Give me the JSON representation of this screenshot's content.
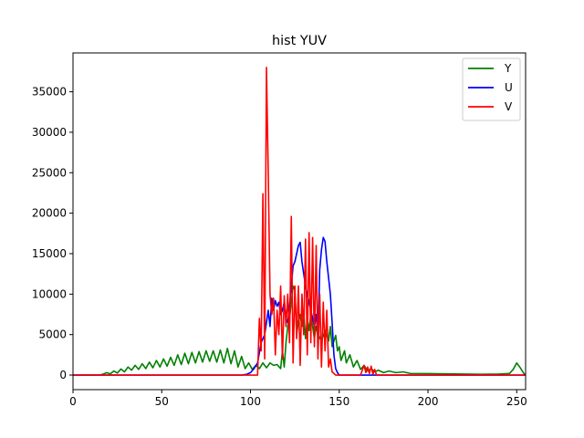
{
  "chart_data": {
    "type": "line",
    "title": "hist YUV",
    "xlabel": "",
    "ylabel": "",
    "xlim": [
      0,
      255
    ],
    "ylim": [
      -1800,
      39800
    ],
    "xticks": [
      0,
      50,
      100,
      150,
      200,
      250
    ],
    "yticks": [
      0,
      5000,
      10000,
      15000,
      20000,
      25000,
      30000,
      35000
    ],
    "legend_position": "top-right",
    "grid": false,
    "series": [
      {
        "name": "Y",
        "color": "#008000",
        "points": [
          [
            0,
            0
          ],
          [
            15,
            0
          ],
          [
            17,
            120
          ],
          [
            19,
            300
          ],
          [
            21,
            150
          ],
          [
            23,
            500
          ],
          [
            25,
            250
          ],
          [
            27,
            750
          ],
          [
            29,
            400
          ],
          [
            31,
            1000
          ],
          [
            33,
            600
          ],
          [
            35,
            1200
          ],
          [
            37,
            700
          ],
          [
            39,
            1400
          ],
          [
            41,
            800
          ],
          [
            43,
            1600
          ],
          [
            45,
            900
          ],
          [
            47,
            1800
          ],
          [
            49,
            1000
          ],
          [
            51,
            2000
          ],
          [
            53,
            1100
          ],
          [
            55,
            2200
          ],
          [
            57,
            1200
          ],
          [
            59,
            2500
          ],
          [
            61,
            1300
          ],
          [
            63,
            2700
          ],
          [
            65,
            1400
          ],
          [
            67,
            2800
          ],
          [
            69,
            1500
          ],
          [
            71,
            2900
          ],
          [
            73,
            1600
          ],
          [
            75,
            3000
          ],
          [
            77,
            1700
          ],
          [
            79,
            3000
          ],
          [
            81,
            1600
          ],
          [
            83,
            3100
          ],
          [
            85,
            1500
          ],
          [
            87,
            3300
          ],
          [
            89,
            1400
          ],
          [
            91,
            3000
          ],
          [
            93,
            1000
          ],
          [
            95,
            2300
          ],
          [
            97,
            800
          ],
          [
            99,
            1500
          ],
          [
            101,
            700
          ],
          [
            103,
            1200
          ],
          [
            105,
            800
          ],
          [
            107,
            1500
          ],
          [
            109,
            900
          ],
          [
            111,
            1500
          ],
          [
            113,
            1200
          ],
          [
            115,
            1300
          ],
          [
            117,
            800
          ],
          [
            118,
            3000
          ],
          [
            119,
            1000
          ],
          [
            120,
            4000
          ],
          [
            121,
            6000
          ],
          [
            122,
            7000
          ],
          [
            123,
            9000
          ],
          [
            124,
            11000
          ],
          [
            125,
            10500
          ],
          [
            126,
            5000
          ],
          [
            127,
            6500
          ],
          [
            128,
            7500
          ],
          [
            129,
            6000
          ],
          [
            130,
            7800
          ],
          [
            131,
            4500
          ],
          [
            132,
            7000
          ],
          [
            133,
            5500
          ],
          [
            134,
            7500
          ],
          [
            135,
            6000
          ],
          [
            136,
            4500
          ],
          [
            137,
            6000
          ],
          [
            138,
            5000
          ],
          [
            140,
            4200
          ],
          [
            142,
            5500
          ],
          [
            144,
            4200
          ],
          [
            145,
            6000
          ],
          [
            146,
            3500
          ],
          [
            148,
            4900
          ],
          [
            149,
            3000
          ],
          [
            150,
            3500
          ],
          [
            151,
            1800
          ],
          [
            153,
            3000
          ],
          [
            154,
            1500
          ],
          [
            156,
            2500
          ],
          [
            158,
            1000
          ],
          [
            160,
            1800
          ],
          [
            162,
            700
          ],
          [
            164,
            1200
          ],
          [
            166,
            500
          ],
          [
            168,
            800
          ],
          [
            170,
            400
          ],
          [
            172,
            600
          ],
          [
            175,
            300
          ],
          [
            178,
            500
          ],
          [
            182,
            300
          ],
          [
            186,
            400
          ],
          [
            190,
            200
          ],
          [
            200,
            180
          ],
          [
            210,
            150
          ],
          [
            220,
            120
          ],
          [
            230,
            100
          ],
          [
            240,
            120
          ],
          [
            246,
            200
          ],
          [
            248,
            700
          ],
          [
            250,
            1500
          ],
          [
            252,
            900
          ],
          [
            254,
            200
          ],
          [
            255,
            0
          ]
        ]
      },
      {
        "name": "U",
        "color": "#0000ff",
        "points": [
          [
            0,
            0
          ],
          [
            95,
            0
          ],
          [
            98,
            100
          ],
          [
            100,
            300
          ],
          [
            102,
            800
          ],
          [
            104,
            1500
          ],
          [
            106,
            4000
          ],
          [
            108,
            5000
          ],
          [
            109,
            6500
          ],
          [
            110,
            8000
          ],
          [
            111,
            6000
          ],
          [
            112,
            9500
          ],
          [
            113,
            8000
          ],
          [
            114,
            9200
          ],
          [
            115,
            8500
          ],
          [
            116,
            9000
          ],
          [
            117,
            7500
          ],
          [
            118,
            8000
          ],
          [
            119,
            9000
          ],
          [
            120,
            7000
          ],
          [
            121,
            6500
          ],
          [
            122,
            8500
          ],
          [
            124,
            13500
          ],
          [
            125,
            14000
          ],
          [
            127,
            16000
          ],
          [
            128,
            16400
          ],
          [
            129,
            14000
          ],
          [
            131,
            11000
          ],
          [
            133,
            9000
          ],
          [
            135,
            7000
          ],
          [
            136,
            6000
          ],
          [
            137,
            7500
          ],
          [
            138,
            4500
          ],
          [
            139,
            13000
          ],
          [
            140,
            15500
          ],
          [
            141,
            17000
          ],
          [
            142,
            16500
          ],
          [
            143,
            14000
          ],
          [
            145,
            10000
          ],
          [
            146,
            6500
          ],
          [
            147,
            2500
          ],
          [
            148,
            800
          ],
          [
            149,
            300
          ],
          [
            150,
            0
          ],
          [
            155,
            0
          ],
          [
            255,
            0
          ]
        ]
      },
      {
        "name": "V",
        "color": "#ff0000",
        "points": [
          [
            0,
            0
          ],
          [
            104,
            0
          ],
          [
            105,
            7000
          ],
          [
            106,
            3000
          ],
          [
            107,
            22400
          ],
          [
            108,
            2000
          ],
          [
            109,
            38000
          ],
          [
            110,
            25000
          ],
          [
            111,
            10000
          ],
          [
            112,
            7500
          ],
          [
            113,
            9500
          ],
          [
            114,
            2500
          ],
          [
            115,
            8000
          ],
          [
            116,
            5000
          ],
          [
            117,
            11000
          ],
          [
            118,
            2000
          ],
          [
            119,
            9800
          ],
          [
            120,
            6000
          ],
          [
            121,
            10000
          ],
          [
            122,
            4000
          ],
          [
            123,
            19600
          ],
          [
            124,
            1500
          ],
          [
            125,
            11000
          ],
          [
            126,
            4500
          ],
          [
            127,
            11000
          ],
          [
            128,
            1200
          ],
          [
            129,
            10000
          ],
          [
            130,
            5000
          ],
          [
            131,
            16800
          ],
          [
            132,
            2500
          ],
          [
            133,
            17600
          ],
          [
            134,
            4000
          ],
          [
            135,
            17000
          ],
          [
            136,
            3500
          ],
          [
            137,
            16000
          ],
          [
            138,
            2000
          ],
          [
            139,
            10000
          ],
          [
            140,
            1000
          ],
          [
            141,
            9000
          ],
          [
            142,
            3000
          ],
          [
            143,
            8000
          ],
          [
            144,
            1000
          ],
          [
            145,
            2000
          ],
          [
            146,
            400
          ],
          [
            147,
            200
          ],
          [
            148,
            0
          ],
          [
            162,
            0
          ],
          [
            164,
            1200
          ],
          [
            165,
            300
          ],
          [
            166,
            1000
          ],
          [
            167,
            200
          ],
          [
            168,
            1100
          ],
          [
            169,
            100
          ],
          [
            170,
            700
          ],
          [
            171,
            0
          ],
          [
            255,
            0
          ]
        ]
      }
    ]
  }
}
